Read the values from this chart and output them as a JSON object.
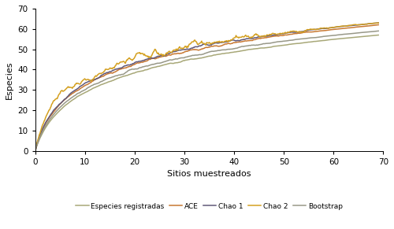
{
  "xlabel": "Sitios muestreados",
  "ylabel": "Especies",
  "xlim": [
    0,
    70
  ],
  "ylim": [
    0,
    70
  ],
  "xticks": [
    0,
    10,
    20,
    30,
    40,
    50,
    60,
    70
  ],
  "yticks": [
    0,
    10,
    20,
    30,
    40,
    50,
    60,
    70
  ],
  "legend_labels": [
    "Especies registradas",
    "ACE",
    "Chao 1",
    "Chao 2",
    "Bootstrap"
  ],
  "colors": {
    "especies": "#a8a878",
    "ace": "#c87832",
    "chao1": "#605878",
    "chao2": "#d4a020",
    "bootstrap": "#989888"
  },
  "linewidth": 1.1,
  "figsize": [
    5.0,
    2.91
  ],
  "dpi": 100
}
